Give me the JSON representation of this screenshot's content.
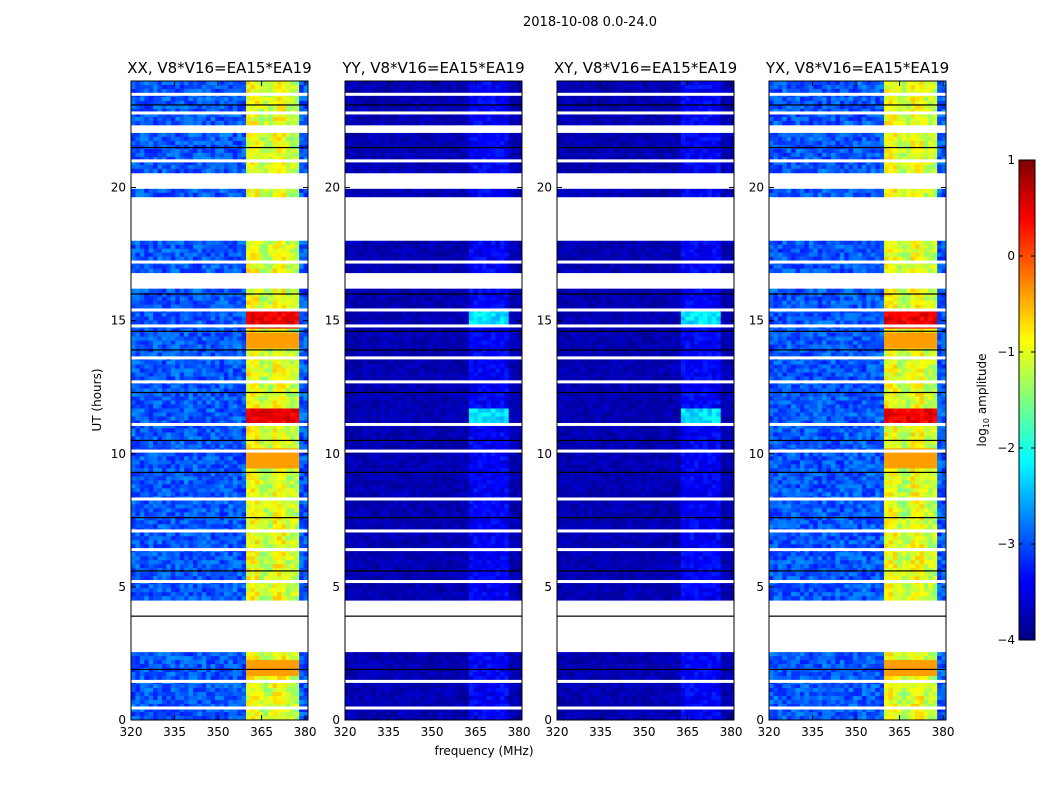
{
  "chart_data": {
    "type": "heatmap",
    "title": "2018-10-08 0.0-24.0",
    "xlabel": "frequency (MHz)",
    "ylabel": "UT (hours)",
    "xlim": [
      320,
      381
    ],
    "ylim": [
      0,
      24
    ],
    "xticks": [
      320,
      335,
      350,
      365,
      380
    ],
    "yticks": [
      0,
      5,
      10,
      15,
      20
    ],
    "panels": [
      {
        "name": "XX, V8*V16=EA15*EA19",
        "polarization": "XX",
        "level": "parallel"
      },
      {
        "name": "YY, V8*V16=EA15*EA19",
        "polarization": "YY",
        "level": "cross"
      },
      {
        "name": "XY, V8*V16=EA15*EA19",
        "polarization": "XY",
        "level": "cross"
      },
      {
        "name": "YX, V8*V16=EA15*EA19",
        "polarization": "YX",
        "level": "parallel"
      }
    ],
    "signal_band_mhz": [
      360,
      378
    ],
    "no_data_ut_ranges": [
      [
        2.5,
        4.5
      ],
      [
        16.2,
        16.8
      ],
      [
        18.0,
        19.6
      ],
      [
        20.0,
        20.5
      ],
      [
        22.0,
        22.3
      ]
    ],
    "peak_ut_hours": [
      11.4,
      15.1
    ],
    "colorbar": {
      "label": "log10 amplitude",
      "range": [
        -4,
        1
      ],
      "ticks": [
        1,
        0,
        -1,
        -2,
        -3,
        -4
      ],
      "colormap": "jet"
    }
  },
  "colors": {
    "background": "#ffffff",
    "colormap_low": "#00007f",
    "colormap_high": "#7f0000"
  }
}
